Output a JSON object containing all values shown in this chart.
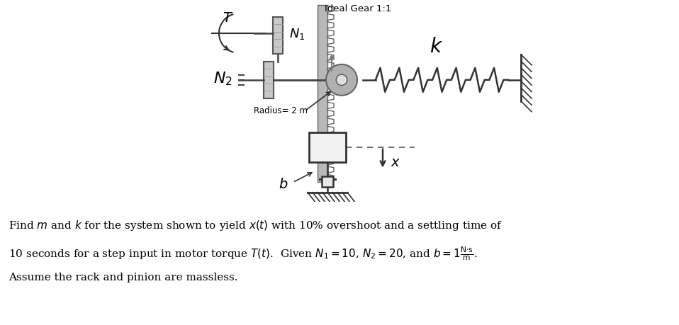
{
  "fig_width": 9.58,
  "fig_height": 4.59,
  "dpi": 100,
  "bg_color": "#ffffff",
  "diagram_title": "Ideal Gear 1:1",
  "problem_line1": "Find $m$ and $k$ for the system shown to yield $x(t)$ with 10% overshoot and a settling time of",
  "problem_line2": "10 seconds for a step input in motor torque $T(t)$.  Given $N_1 = 10$, $N_2 = 20$, and $b = 1\\frac{\\mathrm{N{\\cdot}s}}{\\mathrm{m}}$.",
  "problem_line3": "Assume the rack and pinion are massless.",
  "text_color": "#000000"
}
